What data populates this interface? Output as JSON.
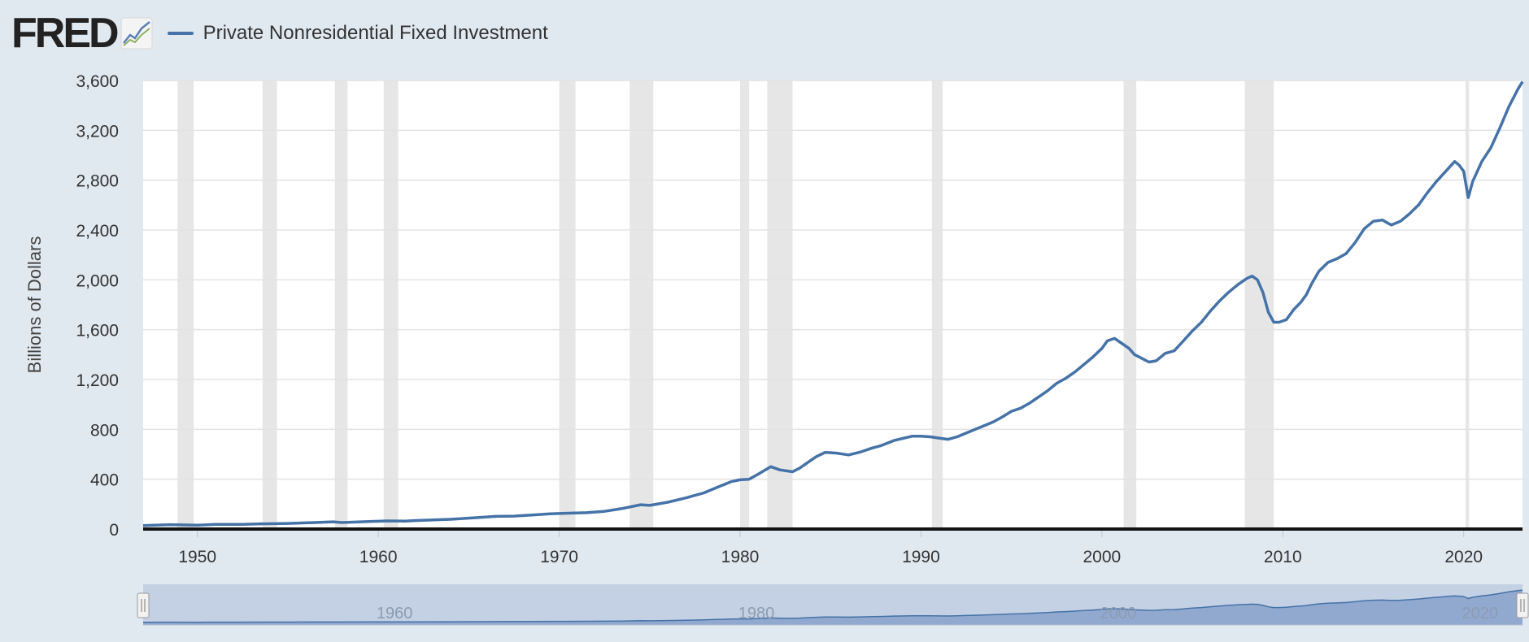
{
  "brand": {
    "name": "FRED",
    "logo_icon": "line-graph-icon"
  },
  "legend": {
    "label": "Private Nonresidential Fixed Investment",
    "color": "#4572a7"
  },
  "chart_data": {
    "type": "line",
    "title": "",
    "xlabel": "",
    "ylabel": "Billions of Dollars",
    "xlim": [
      1947.0,
      2023.25
    ],
    "ylim": [
      0,
      3600
    ],
    "y_ticks": [
      0,
      400,
      800,
      1200,
      1600,
      2000,
      2400,
      2800,
      3200,
      3600
    ],
    "y_tick_labels": [
      "0",
      "400",
      "800",
      "1,200",
      "1,600",
      "2,000",
      "2,400",
      "2,800",
      "3,200",
      "3,600"
    ],
    "x_ticks": [
      1950,
      1960,
      1970,
      1980,
      1990,
      2000,
      2010,
      2020
    ],
    "x_tick_labels": [
      "1950",
      "1960",
      "1970",
      "1980",
      "1990",
      "2000",
      "2010",
      "2020"
    ],
    "grid": true,
    "legend_position": "top-left",
    "recession_shading_color": "#e6e6e6",
    "recessions": [
      [
        1948.9,
        1949.8
      ],
      [
        1953.6,
        1954.4
      ],
      [
        1957.6,
        1958.3
      ],
      [
        1960.3,
        1961.1
      ],
      [
        1970.0,
        1970.9
      ],
      [
        1973.9,
        1975.2
      ],
      [
        1980.0,
        1980.5
      ],
      [
        1981.5,
        1982.9
      ],
      [
        1990.6,
        1991.2
      ],
      [
        2001.2,
        2001.9
      ],
      [
        2007.9,
        2009.5
      ],
      [
        2020.1,
        2020.3
      ]
    ],
    "series": [
      {
        "name": "Private Nonresidential Fixed Investment",
        "color": "#4572a7",
        "x": [
          1947.0,
          1948.5,
          1950.0,
          1951.0,
          1952.5,
          1953.5,
          1955.0,
          1956.5,
          1957.5,
          1958.0,
          1959.5,
          1960.5,
          1961.5,
          1962.0,
          1964.0,
          1965.5,
          1966.5,
          1967.5,
          1968.5,
          1969.5,
          1970.5,
          1971.5,
          1972.5,
          1973.5,
          1974.5,
          1975.0,
          1976.0,
          1977.0,
          1978.0,
          1978.5,
          1979.0,
          1979.5,
          1980.0,
          1980.5,
          1981.0,
          1981.7,
          1982.2,
          1982.9,
          1983.3,
          1983.7,
          1984.2,
          1984.7,
          1985.3,
          1986.0,
          1986.7,
          1987.3,
          1987.8,
          1988.5,
          1989.5,
          1990.0,
          1990.5,
          1991.0,
          1991.5,
          1992.0,
          1992.5,
          1993.0,
          1993.5,
          1994.0,
          1994.5,
          1995.0,
          1995.5,
          1996.0,
          1996.5,
          1997.0,
          1997.5,
          1998.0,
          1998.5,
          1999.0,
          1999.5,
          2000.0,
          2000.3,
          2000.7,
          2001.0,
          2001.5,
          2001.8,
          2002.2,
          2002.6,
          2003.0,
          2003.5,
          2004.0,
          2004.5,
          2005.0,
          2005.5,
          2006.0,
          2006.5,
          2007.0,
          2007.5,
          2008.0,
          2008.3,
          2008.6,
          2008.9,
          2009.2,
          2009.5,
          2009.8,
          2010.2,
          2010.6,
          2011.0,
          2011.3,
          2011.6,
          2012.0,
          2012.5,
          2013.0,
          2013.5,
          2014.0,
          2014.5,
          2015.0,
          2015.5,
          2016.0,
          2016.5,
          2017.0,
          2017.5,
          2018.0,
          2018.5,
          2019.0,
          2019.5,
          2019.75,
          2020.0,
          2020.25,
          2020.5,
          2021.0,
          2021.5,
          2022.0,
          2022.5,
          2023.0,
          2023.25
        ],
        "y": [
          28,
          35,
          31,
          37,
          38,
          42,
          45,
          52,
          58,
          52,
          60,
          65,
          63,
          68,
          78,
          92,
          102,
          104,
          112,
          122,
          127,
          131,
          142,
          165,
          195,
          190,
          215,
          250,
          290,
          320,
          350,
          380,
          395,
          400,
          440,
          500,
          475,
          460,
          490,
          530,
          580,
          615,
          610,
          595,
          620,
          650,
          670,
          710,
          745,
          745,
          740,
          730,
          720,
          740,
          770,
          800,
          830,
          860,
          900,
          945,
          970,
          1010,
          1060,
          1110,
          1170,
          1210,
          1260,
          1320,
          1380,
          1450,
          1510,
          1530,
          1500,
          1450,
          1400,
          1370,
          1340,
          1350,
          1410,
          1430,
          1510,
          1590,
          1660,
          1750,
          1830,
          1900,
          1960,
          2010,
          2030,
          2000,
          1900,
          1740,
          1660,
          1660,
          1680,
          1760,
          1820,
          1880,
          1970,
          2070,
          2140,
          2170,
          2210,
          2300,
          2410,
          2470,
          2480,
          2440,
          2470,
          2530,
          2600,
          2700,
          2790,
          2870,
          2950,
          2920,
          2870,
          2660,
          2790,
          2950,
          3060,
          3220,
          3390,
          3530,
          3590
        ]
      }
    ]
  }
}
